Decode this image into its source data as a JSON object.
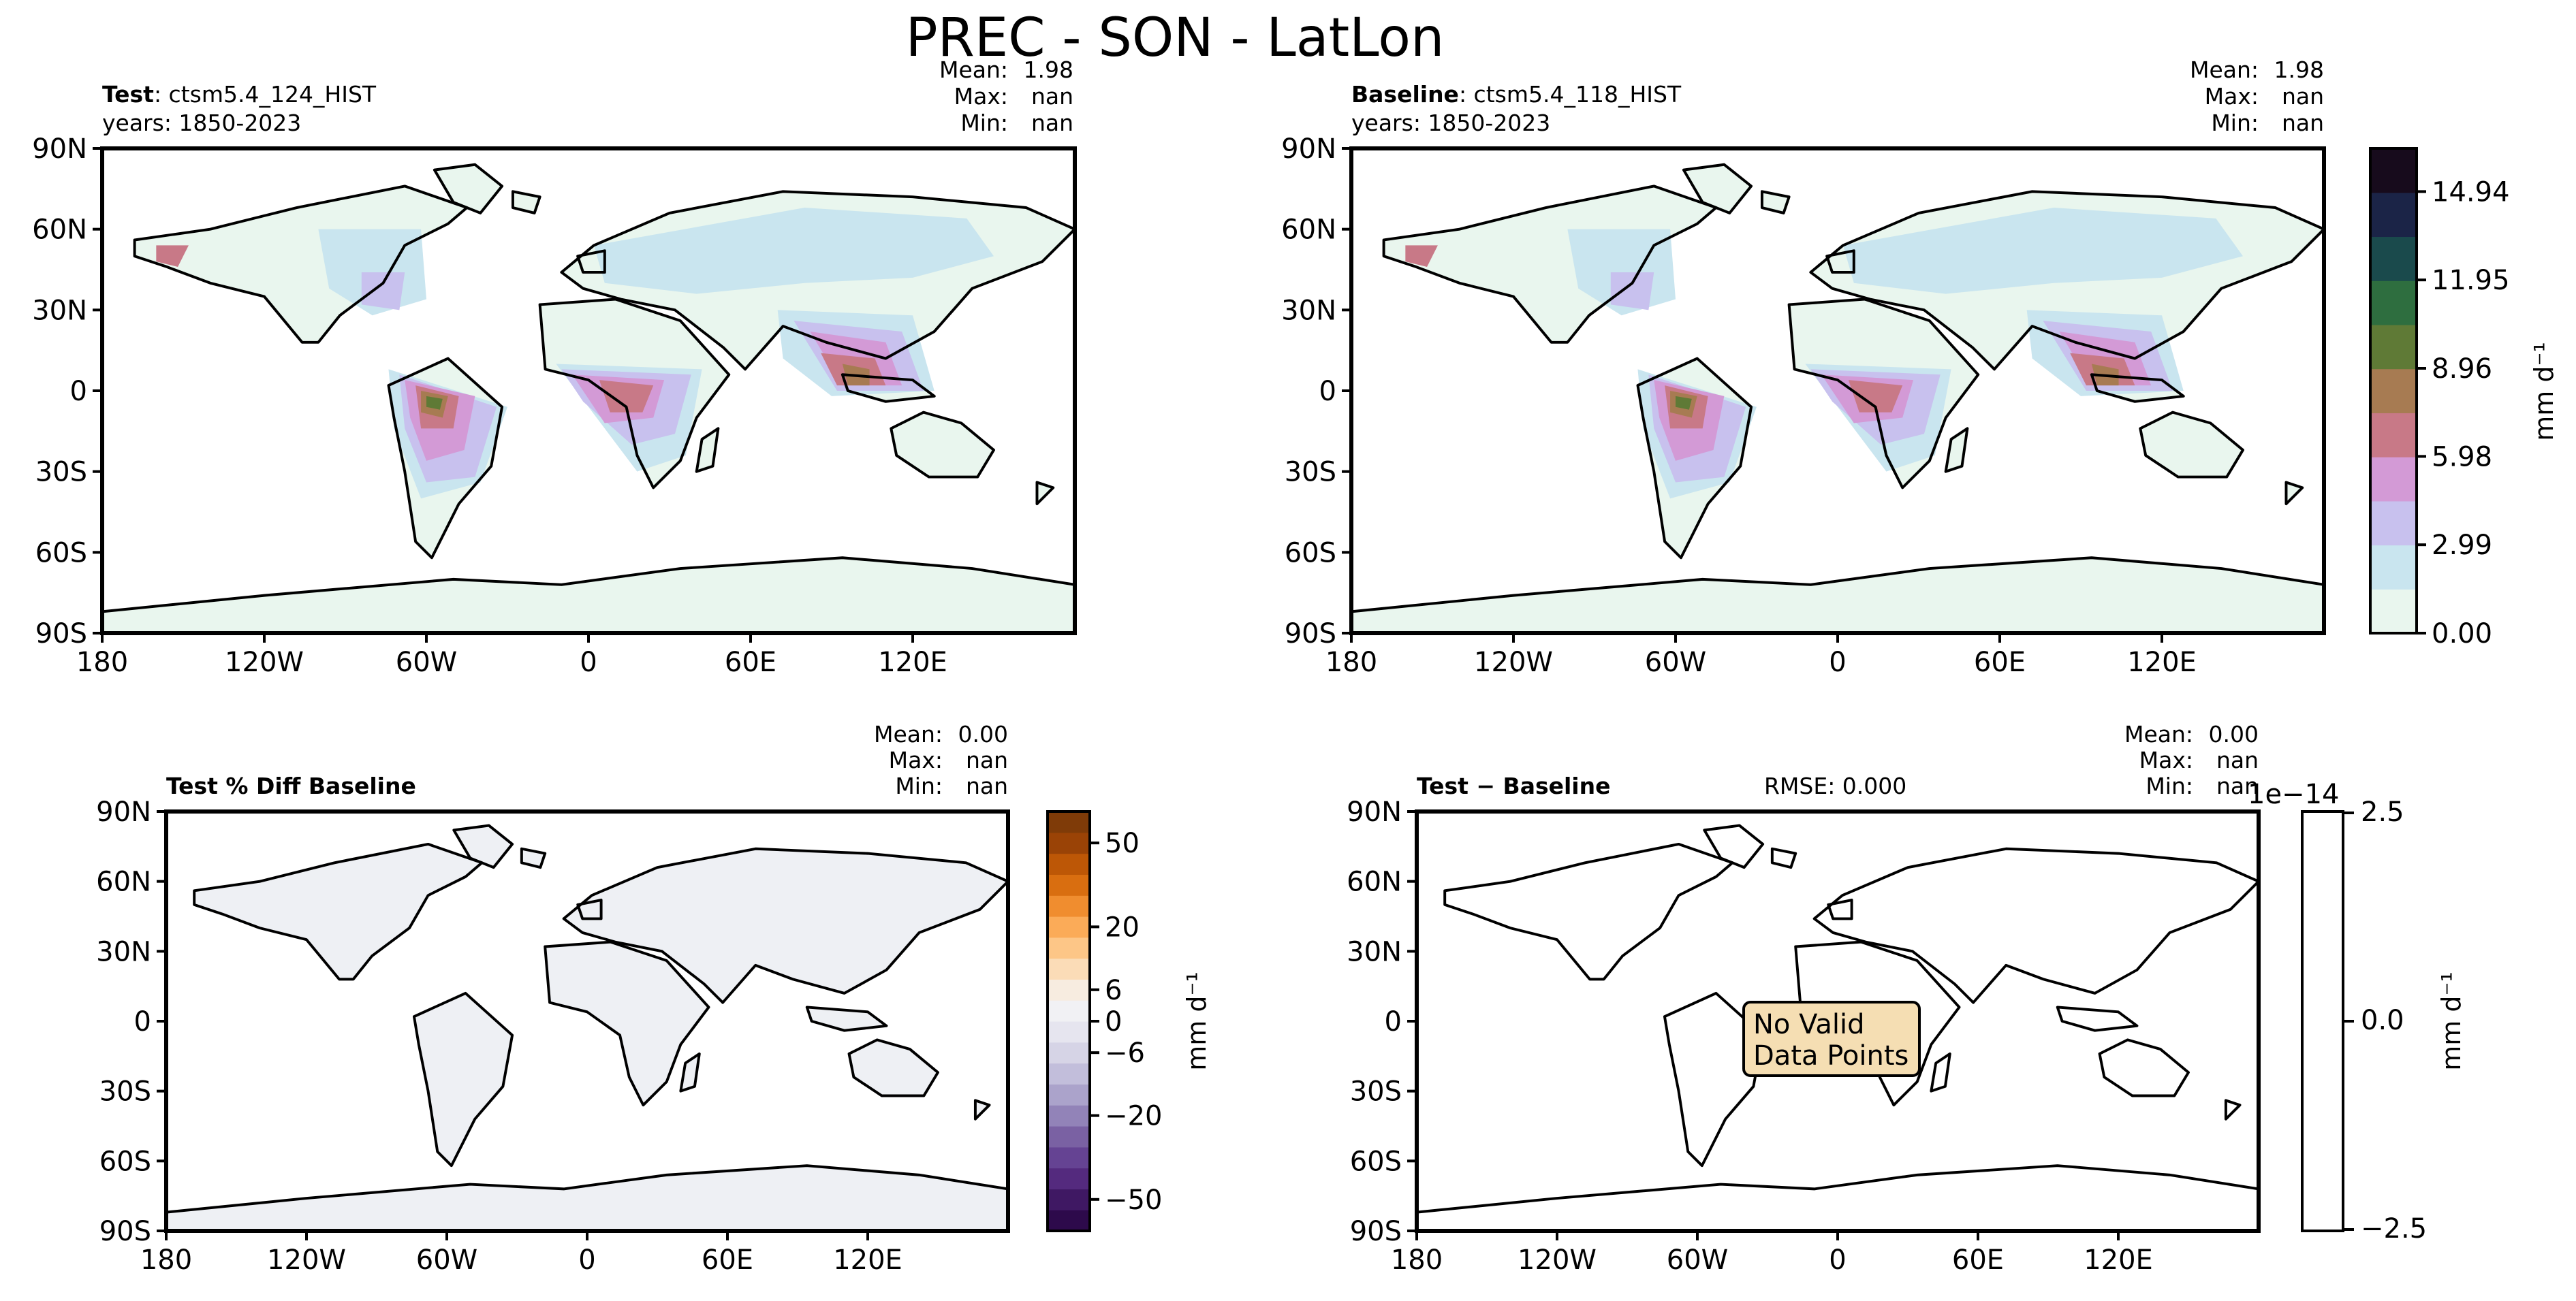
{
  "figure_title": "PREC - SON - LatLon",
  "units": "mm d⁻¹",
  "lat_ticks": [
    "90N",
    "60N",
    "30N",
    "0",
    "30S",
    "60S",
    "90S"
  ],
  "lon_ticks": [
    "180",
    "120W",
    "60W",
    "0",
    "60E",
    "120E"
  ],
  "panels": {
    "test": {
      "label_bold": "Test",
      "label_rest": ": ctsm5.4_124_HIST",
      "years": "years: 1850-2023",
      "stats": [
        {
          "label": "Mean:",
          "value": "1.98"
        },
        {
          "label": "Max:",
          "value": "nan"
        },
        {
          "label": "Min:",
          "value": "nan"
        }
      ]
    },
    "baseline": {
      "label_bold": "Baseline",
      "label_rest": ": ctsm5.4_118_HIST",
      "years": "years: 1850-2023",
      "stats": [
        {
          "label": "Mean:",
          "value": "1.98"
        },
        {
          "label": "Max:",
          "value": "nan"
        },
        {
          "label": "Min:",
          "value": "nan"
        }
      ]
    },
    "pctdiff": {
      "label_bold": "Test % Diff Baseline",
      "stats": [
        {
          "label": "Mean:",
          "value": "0.00"
        },
        {
          "label": "Max:",
          "value": "nan"
        },
        {
          "label": "Min:",
          "value": "nan"
        }
      ]
    },
    "diff": {
      "label_bold": "Test − Baseline",
      "rmse": "RMSE: 0.000",
      "stats": [
        {
          "label": "Mean:",
          "value": "0.00"
        },
        {
          "label": "Max:",
          "value": "nan"
        },
        {
          "label": "Min:",
          "value": "nan"
        }
      ],
      "no_data_line1": "No Valid",
      "no_data_line2": "Data Points"
    }
  },
  "colorbars": {
    "prec": {
      "tick_labels": [
        "0.00",
        "2.99",
        "5.98",
        "8.96",
        "11.95",
        "14.94"
      ],
      "tick_values": [
        0.0,
        2.99,
        5.98,
        8.96,
        11.95,
        14.94
      ],
      "range": [
        0.0,
        16.4
      ],
      "colors": [
        "#e9f6ee",
        "#c9e5ef",
        "#c8c1ee",
        "#d39ad6",
        "#c87987",
        "#a77b52",
        "#5f7a36",
        "#2e6e3f",
        "#1a4a4c",
        "#1b2447",
        "#170b1c"
      ]
    },
    "pctdiff": {
      "tick_labels": [
        "−50",
        "−20",
        "−6",
        "0",
        "6",
        "20",
        "50"
      ],
      "colors": [
        "#2d0a4b",
        "#3f1863",
        "#542a7e",
        "#654393",
        "#7a61a3",
        "#9283b8",
        "#aba3cb",
        "#c2bedb",
        "#d6d4e6",
        "#e6e5ef",
        "#f1f1f4",
        "#f7ece0",
        "#fbdcb7",
        "#fdc687",
        "#fbab58",
        "#f08d2f",
        "#d96e10",
        "#bd5706",
        "#9a4306",
        "#7f3b08"
      ]
    },
    "diff": {
      "tick_labels": [
        "−2.5",
        "0.0",
        "2.5"
      ],
      "offset_label": "1e−14"
    }
  },
  "colors": {
    "land_low": "#e9f6ee",
    "land_diff": "#eef0f4",
    "no_data_box": "#f5deb3"
  }
}
